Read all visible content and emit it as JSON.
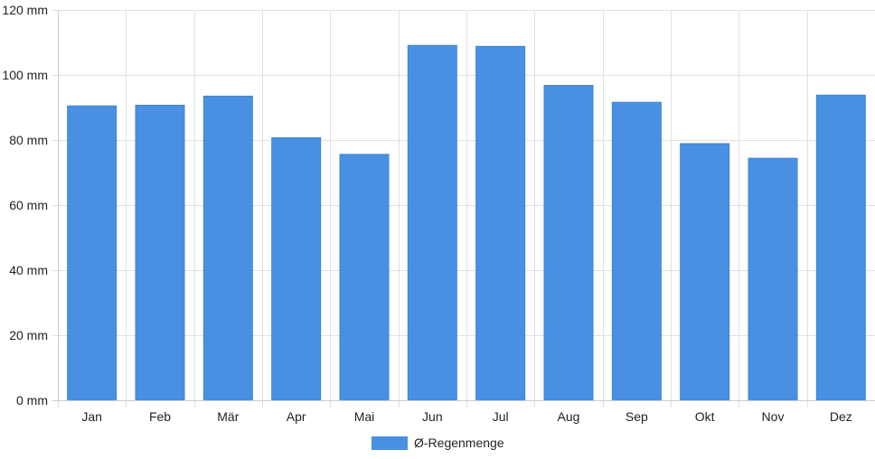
{
  "chart_data": {
    "type": "bar",
    "categories": [
      "Jan",
      "Feb",
      "Mär",
      "Apr",
      "Mai",
      "Jun",
      "Jul",
      "Aug",
      "Sep",
      "Okt",
      "Nov",
      "Dez"
    ],
    "series": [
      {
        "name": "Ø-Regenmenge",
        "values": [
          90.5,
          90.7,
          93.5,
          80.7,
          75.6,
          109.1,
          108.8,
          96.8,
          91.6,
          78.9,
          74.4,
          93.8
        ],
        "color": "#4a90e2"
      }
    ],
    "y_ticks": [
      0,
      20,
      40,
      60,
      80,
      100,
      120
    ],
    "y_unit": "mm",
    "ylim": [
      0,
      120
    ],
    "grid": true,
    "legend_position": "bottom-center",
    "gridline_color": "#e0e0e0",
    "axis_color": "#cccccc"
  }
}
